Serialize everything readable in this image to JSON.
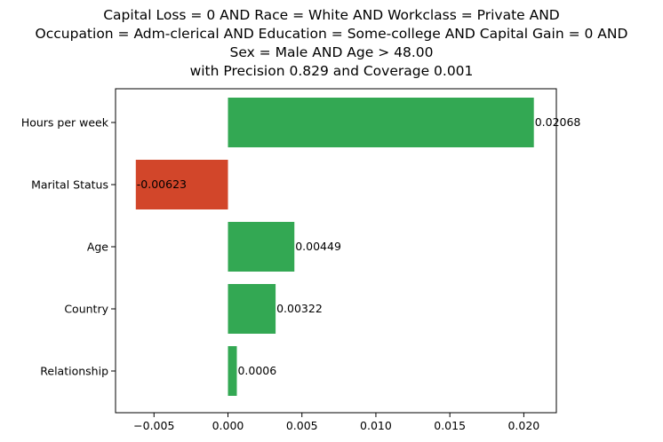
{
  "chart_data": {
    "type": "bar",
    "orientation": "horizontal",
    "title_lines": [
      "Capital Loss = 0 AND Race = White AND Workclass = Private AND",
      "Occupation = Adm-clerical AND Education = Some-college AND Capital Gain = 0 AND",
      "Sex = Male AND Age > 48.00",
      "with Precision 0.829 and Coverage 0.001"
    ],
    "categories": [
      "Hours per week",
      "Marital Status",
      "Age",
      "Country",
      "Relationship"
    ],
    "values": [
      0.02068,
      -0.00623,
      0.00449,
      0.00322,
      0.0006
    ],
    "value_labels": [
      "0.02068",
      "-0.00623",
      "0.00449",
      "0.00322",
      "0.0006"
    ],
    "xlim": [
      -0.0076,
      0.0222
    ],
    "xticks": [
      -0.005,
      0.0,
      0.005,
      0.01,
      0.015,
      0.02
    ],
    "xtick_labels": [
      "−0.005",
      "0.000",
      "0.005",
      "0.010",
      "0.015",
      "0.020"
    ],
    "xlabel": "",
    "ylabel": "",
    "grid": false,
    "colors": {
      "positive": "#33a853",
      "negative": "#d2462a"
    }
  }
}
